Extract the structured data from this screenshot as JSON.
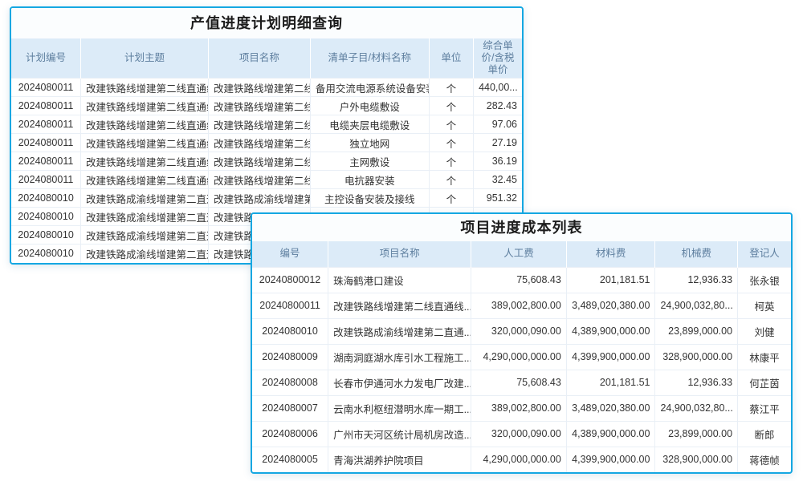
{
  "colors": {
    "panel_border": "#14a7e2",
    "title_bg": "#fbfdfe",
    "header_bg": "#dcebf8",
    "header_text": "#5d7e9e",
    "link": "#409ff2",
    "body_text": "#333333",
    "grid_line": "#e9eff6"
  },
  "plan_detail_panel": {
    "title": "产值进度计划明细查询",
    "columns": [
      {
        "key": "plan_no",
        "label": "计划编号",
        "align": "center",
        "type": "link"
      },
      {
        "key": "plan_subject",
        "label": "计划主题",
        "align": "left",
        "type": "link"
      },
      {
        "key": "project_name",
        "label": "项目名称",
        "align": "left",
        "type": "link"
      },
      {
        "key": "item_name",
        "label": "清单子目/材料名称",
        "align": "center",
        "type": "text"
      },
      {
        "key": "unit",
        "label": "单位",
        "align": "center",
        "type": "text"
      },
      {
        "key": "price",
        "label": "综合单价/含税单价",
        "align": "right",
        "type": "text"
      }
    ],
    "rows": [
      {
        "plan_no": "2024080011",
        "plan_subject": "改建铁路线增建第二线直通线",
        "project_name": "改建铁路线增建第二线直通",
        "item_name": "备用交流电源系统设备安装",
        "unit": "个",
        "price": "440,00..."
      },
      {
        "plan_no": "2024080011",
        "plan_subject": "改建铁路线增建第二线直通线",
        "project_name": "改建铁路线增建第二线直通",
        "item_name": "户外电缆敷设",
        "unit": "个",
        "price": "282.43"
      },
      {
        "plan_no": "2024080011",
        "plan_subject": "改建铁路线增建第二线直通线",
        "project_name": "改建铁路线增建第二线直通",
        "item_name": "电缆夹层电缆敷设",
        "unit": "个",
        "price": "97.06"
      },
      {
        "plan_no": "2024080011",
        "plan_subject": "改建铁路线增建第二线直通线",
        "project_name": "改建铁路线增建第二线直通",
        "item_name": "独立地网",
        "unit": "个",
        "price": "27.19"
      },
      {
        "plan_no": "2024080011",
        "plan_subject": "改建铁路线增建第二线直通线",
        "project_name": "改建铁路线增建第二线直通",
        "item_name": "主网敷设",
        "unit": "个",
        "price": "36.19"
      },
      {
        "plan_no": "2024080011",
        "plan_subject": "改建铁路线增建第二线直通线",
        "project_name": "改建铁路线增建第二线直通",
        "item_name": "电抗器安装",
        "unit": "个",
        "price": "32.45"
      },
      {
        "plan_no": "2024080010",
        "plan_subject": "改建铁路成渝线增建第二直通",
        "project_name": "改建铁路成渝线增建第二直",
        "item_name": "主控设备安装及接线",
        "unit": "个",
        "price": "951.32"
      },
      {
        "plan_no": "2024080010",
        "plan_subject": "改建铁路成渝线增建第二直通",
        "project_name": "改建铁路成渝线增建第二直",
        "item_name": "",
        "unit": "",
        "price": ""
      },
      {
        "plan_no": "2024080010",
        "plan_subject": "改建铁路成渝线增建第二直通",
        "project_name": "改建铁路成渝线增建第二直",
        "item_name": "",
        "unit": "",
        "price": ""
      },
      {
        "plan_no": "2024080010",
        "plan_subject": "改建铁路成渝线增建第二直通",
        "project_name": "改建铁路成渝线增建第二直",
        "item_name": "",
        "unit": "",
        "price": ""
      }
    ]
  },
  "cost_list_panel": {
    "title": "项目进度成本列表",
    "columns": [
      {
        "key": "no",
        "label": "编号",
        "align": "center",
        "type": "link"
      },
      {
        "key": "project_name",
        "label": "项目名称",
        "align": "left",
        "type": "link"
      },
      {
        "key": "labor_cost",
        "label": "人工费",
        "align": "right",
        "type": "text"
      },
      {
        "key": "material_cost",
        "label": "材料费",
        "align": "right",
        "type": "text"
      },
      {
        "key": "machine_cost",
        "label": "机械费",
        "align": "right",
        "type": "text"
      },
      {
        "key": "registrant",
        "label": "登记人",
        "align": "center",
        "type": "link"
      }
    ],
    "rows": [
      {
        "no": "20240800012",
        "project_name": "珠海鹤港口建设",
        "labor_cost": "75,608.43",
        "material_cost": "201,181.51",
        "machine_cost": "12,936.33",
        "registrant": "张永银"
      },
      {
        "no": "20240800011",
        "project_name": "改建铁路线增建第二线直通线...",
        "labor_cost": "389,002,800.00",
        "material_cost": "3,489,020,380.00",
        "machine_cost": "24,900,032,80...",
        "registrant": "柯英"
      },
      {
        "no": "2024080010",
        "project_name": "改建铁路成渝线增建第二直通...",
        "labor_cost": "320,000,090.00",
        "material_cost": "4,389,900,000.00",
        "machine_cost": "23,899,000.00",
        "registrant": "刘健"
      },
      {
        "no": "2024080009",
        "project_name": "湖南洞庭湖水库引水工程施工...",
        "labor_cost": "4,290,000,000.00",
        "material_cost": "4,399,900,000.00",
        "machine_cost": "328,900,000.00",
        "registrant": "林康平"
      },
      {
        "no": "2024080008",
        "project_name": "长春市伊通河水力发电厂改建...",
        "labor_cost": "75,608.43",
        "material_cost": "201,181.51",
        "machine_cost": "12,936.33",
        "registrant": "何芷茵"
      },
      {
        "no": "2024080007",
        "project_name": "云南水利枢纽潜明水库一期工...",
        "labor_cost": "389,002,800.00",
        "material_cost": "3,489,020,380.00",
        "machine_cost": "24,900,032,80...",
        "registrant": "蔡江平"
      },
      {
        "no": "2024080006",
        "project_name": "广州市天河区统计局机房改造...",
        "labor_cost": "320,000,090.00",
        "material_cost": "4,389,900,000.00",
        "machine_cost": "23,899,000.00",
        "registrant": "断郎"
      },
      {
        "no": "2024080005",
        "project_name": "青海洪湖养护院项目",
        "labor_cost": "4,290,000,000.00",
        "material_cost": "4,399,900,000.00",
        "machine_cost": "328,900,000.00",
        "registrant": "蒋德帧"
      }
    ]
  }
}
